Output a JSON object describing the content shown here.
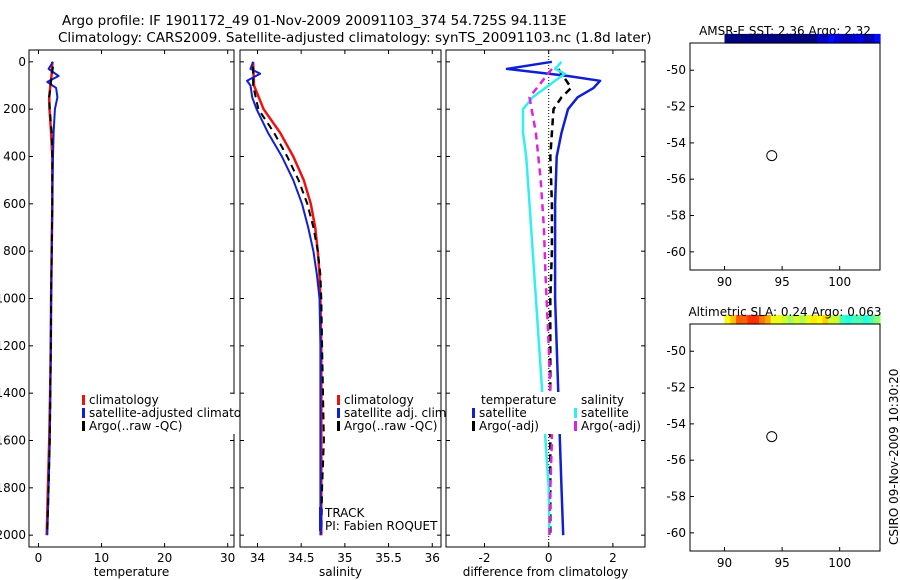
{
  "header": {
    "line1": "Argo profile: IF 1901172_49 01-Nov-2009 20091103_374 54.725S 94.113E",
    "line2": "Climatology: CARS2009. Satellite-adjusted climatology: synTS_20091103.nc (1.8d later)"
  },
  "footer": {
    "credit": "CSIRO 09-Nov-2009 10:30:20"
  },
  "colors": {
    "red": "#ee1111",
    "blue": "#1020d0",
    "black": "#000000",
    "cyan": "#33eeee",
    "magenta": "#dd22dd"
  },
  "chart_data": [
    {
      "id": "temperature",
      "type": "line",
      "xlabel": "temperature",
      "ylabel": "",
      "xlim": [
        -1.5,
        31
      ],
      "ylim": [
        2050,
        -50
      ],
      "xticks": [
        0,
        10,
        20,
        30
      ],
      "yticks": [
        0,
        200,
        400,
        600,
        800,
        1000,
        1200,
        1400,
        1600,
        1800,
        2000
      ],
      "series": [
        {
          "name": "climatology",
          "color": "#ee1111",
          "width": 2.5,
          "dash": "",
          "points": [
            [
              2.2,
              0
            ],
            [
              2.1,
              50
            ],
            [
              1.9,
              100
            ],
            [
              1.7,
              150
            ],
            [
              1.75,
              200
            ],
            [
              2.0,
              300
            ],
            [
              2.2,
              400
            ],
            [
              2.2,
              600
            ],
            [
              2.1,
              800
            ],
            [
              2.0,
              1000
            ],
            [
              1.95,
              1200
            ],
            [
              1.85,
              1400
            ],
            [
              1.7,
              1600
            ],
            [
              1.5,
              1800
            ],
            [
              1.3,
              2000
            ]
          ]
        },
        {
          "name": "satellite-adjusted climatology",
          "color": "#1020d0",
          "width": 2,
          "dash": "",
          "points": [
            [
              2.3,
              0
            ],
            [
              1.6,
              30
            ],
            [
              3.2,
              60
            ],
            [
              1.4,
              85
            ],
            [
              2.8,
              110
            ],
            [
              3.0,
              150
            ],
            [
              2.6,
              200
            ],
            [
              2.4,
              300
            ],
            [
              2.3,
              400
            ],
            [
              2.2,
              600
            ],
            [
              2.1,
              800
            ],
            [
              2.0,
              1000
            ],
            [
              1.95,
              1200
            ],
            [
              1.9,
              1400
            ],
            [
              1.8,
              1600
            ],
            [
              1.6,
              1800
            ],
            [
              1.4,
              2000
            ]
          ]
        },
        {
          "name": "Argo(..raw -QC)",
          "color": "#000000",
          "width": 2,
          "dash": "7,5",
          "points": [
            [
              2.3,
              20
            ],
            [
              2.0,
              80
            ],
            [
              1.7,
              150
            ],
            [
              1.8,
              200
            ],
            [
              2.1,
              300
            ],
            [
              2.2,
              400
            ],
            [
              2.2,
              600
            ],
            [
              2.1,
              800
            ],
            [
              2.0,
              1000
            ],
            [
              1.95,
              1200
            ],
            [
              1.9,
              1400
            ],
            [
              1.8,
              1600
            ],
            [
              1.6,
              1800
            ],
            [
              1.4,
              1990
            ]
          ]
        }
      ],
      "legend": {
        "position": "lower-center",
        "entries": [
          {
            "label": "climatology",
            "color": "#ee1111"
          },
          {
            "label": "satellite-adjusted climatolog",
            "color": "#1020d0"
          },
          {
            "label": "Argo(..raw -QC)",
            "color": "#000000"
          }
        ]
      }
    },
    {
      "id": "salinity",
      "type": "line",
      "xlabel": "salinity",
      "ylabel": "",
      "xlim": [
        33.8,
        36.1
      ],
      "ylim": [
        2050,
        -50
      ],
      "xticks": [
        34,
        34.5,
        35,
        35.5,
        36
      ],
      "series": [
        {
          "name": "climatology",
          "color": "#ee1111",
          "width": 2.5,
          "dash": "",
          "points": [
            [
              33.95,
              0
            ],
            [
              33.96,
              100
            ],
            [
              34.07,
              200
            ],
            [
              34.26,
              300
            ],
            [
              34.41,
              400
            ],
            [
              34.53,
              500
            ],
            [
              34.61,
              600
            ],
            [
              34.66,
              700
            ],
            [
              34.69,
              800
            ],
            [
              34.71,
              900
            ],
            [
              34.72,
              1000
            ],
            [
              34.73,
              1200
            ],
            [
              34.73,
              1400
            ],
            [
              34.73,
              1600
            ],
            [
              34.73,
              1800
            ],
            [
              34.73,
              2000
            ]
          ]
        },
        {
          "name": "satellite adj. clim.",
          "color": "#1020d0",
          "width": 2,
          "dash": "",
          "points": [
            [
              33.95,
              0
            ],
            [
              33.92,
              30
            ],
            [
              34.03,
              50
            ],
            [
              33.88,
              80
            ],
            [
              33.92,
              100
            ],
            [
              33.94,
              150
            ],
            [
              33.99,
              200
            ],
            [
              34.12,
              300
            ],
            [
              34.28,
              400
            ],
            [
              34.41,
              500
            ],
            [
              34.51,
              600
            ],
            [
              34.58,
              700
            ],
            [
              34.64,
              800
            ],
            [
              34.68,
              900
            ],
            [
              34.71,
              1000
            ],
            [
              34.72,
              1200
            ],
            [
              34.72,
              1400
            ],
            [
              34.72,
              1600
            ],
            [
              34.72,
              1800
            ],
            [
              34.72,
              2000
            ]
          ]
        },
        {
          "name": "Argo(..raw -QC)",
          "color": "#000000",
          "width": 2,
          "dash": "7,5",
          "points": [
            [
              33.95,
              20
            ],
            [
              33.95,
              100
            ],
            [
              34.01,
              200
            ],
            [
              34.19,
              300
            ],
            [
              34.34,
              400
            ],
            [
              34.47,
              500
            ],
            [
              34.57,
              600
            ],
            [
              34.64,
              700
            ],
            [
              34.69,
              800
            ],
            [
              34.72,
              900
            ],
            [
              34.73,
              1000
            ],
            [
              34.74,
              1200
            ],
            [
              34.75,
              1400
            ],
            [
              34.76,
              1600
            ],
            [
              34.74,
              1800
            ],
            [
              34.73,
              1990
            ]
          ]
        }
      ],
      "legend": {
        "position": "lower-right",
        "entries": [
          {
            "label": "climatology",
            "color": "#ee1111"
          },
          {
            "label": "satellite adj. clim.",
            "color": "#1020d0"
          },
          {
            "label": "Argo(..raw -QC)",
            "color": "#000000"
          }
        ]
      },
      "annotations": [
        "TRACK",
        "PI: Fabien ROQUET"
      ]
    },
    {
      "id": "difference",
      "type": "line",
      "xlabel": "difference from climatology",
      "ylabel": "",
      "xlim": [
        -3.2,
        3.0
      ],
      "ylim": [
        2050,
        -50
      ],
      "xticks": [
        -2,
        0,
        2
      ],
      "series": [
        {
          "name": "temperature satellite",
          "color": "#1020d0",
          "width": 2.5,
          "dash": "",
          "points": [
            [
              0.1,
              0
            ],
            [
              -1.3,
              30
            ],
            [
              0.6,
              60
            ],
            [
              1.6,
              80
            ],
            [
              1.4,
              110
            ],
            [
              0.9,
              150
            ],
            [
              0.6,
              200
            ],
            [
              0.4,
              300
            ],
            [
              0.25,
              400
            ],
            [
              0.2,
              600
            ],
            [
              0.2,
              800
            ],
            [
              0.2,
              1000
            ],
            [
              0.25,
              1200
            ],
            [
              0.3,
              1400
            ],
            [
              0.35,
              1600
            ],
            [
              0.4,
              1800
            ],
            [
              0.45,
              2000
            ]
          ]
        },
        {
          "name": "temperature Argo(-adj)",
          "color": "#000000",
          "width": 2.5,
          "dash": "7,5",
          "points": [
            [
              0.3,
              30
            ],
            [
              0.55,
              80
            ],
            [
              0.7,
              110
            ],
            [
              0.4,
              150
            ],
            [
              0.15,
              200
            ],
            [
              0.1,
              300
            ],
            [
              0.05,
              400
            ],
            [
              0.1,
              600
            ],
            [
              0.1,
              800
            ],
            [
              0.05,
              1000
            ],
            [
              0.05,
              1200
            ],
            [
              0.05,
              1400
            ],
            [
              0.05,
              1600
            ],
            [
              0.05,
              1800
            ],
            [
              0.05,
              1990
            ]
          ]
        },
        {
          "name": "salinity satellite",
          "color": "#33eeee",
          "width": 2.5,
          "dash": "",
          "points": [
            [
              0.4,
              0
            ],
            [
              0.2,
              30
            ],
            [
              0.5,
              50
            ],
            [
              0.2,
              80
            ],
            [
              -0.5,
              150
            ],
            [
              -0.8,
              200
            ],
            [
              -0.8,
              300
            ],
            [
              -0.7,
              400
            ],
            [
              -0.6,
              600
            ],
            [
              -0.5,
              800
            ],
            [
              -0.4,
              1000
            ],
            [
              -0.3,
              1200
            ],
            [
              -0.2,
              1400
            ],
            [
              -0.1,
              1600
            ],
            [
              0,
              1800
            ],
            [
              0.02,
              2000
            ]
          ]
        },
        {
          "name": "salinity Argo(-adj)",
          "color": "#dd22dd",
          "width": 2.5,
          "dash": "7,5",
          "points": [
            [
              0.1,
              30
            ],
            [
              -0.6,
              150
            ],
            [
              -0.4,
              300
            ],
            [
              -0.25,
              500
            ],
            [
              -0.15,
              700
            ],
            [
              -0.1,
              900
            ],
            [
              0,
              1200
            ],
            [
              0.05,
              1400
            ],
            [
              0.1,
              1600
            ],
            [
              0.05,
              1800
            ],
            [
              0.02,
              2000
            ]
          ]
        }
      ],
      "legend": {
        "position": "lower-center",
        "temperature_title": "temperature",
        "salinity_title": "salinity",
        "entries": [
          {
            "label": "satellite",
            "color": "#1020d0"
          },
          {
            "label": "Argo(-adj)",
            "color": "#000000"
          },
          {
            "label": "satellite",
            "color": "#33eeee"
          },
          {
            "label": "Argo(-adj)",
            "color": "#dd22dd"
          }
        ]
      }
    },
    {
      "id": "sst_map",
      "type": "heatmap",
      "title": "AMSR-E SST: 2.36 Argo: 2.32",
      "xlim": [
        87,
        103.5
      ],
      "ylim": [
        -61,
        -48.5
      ],
      "xticks": [
        90,
        95,
        100
      ],
      "yticks": [
        -50,
        -52,
        -54,
        -56,
        -58,
        -60
      ],
      "marker": [
        94.1,
        -54.7
      ]
    },
    {
      "id": "sla_map",
      "type": "heatmap",
      "title": "Altimetric SLA: 0.24 Argo: 0.063",
      "xlim": [
        87,
        103.5
      ],
      "ylim": [
        -61,
        -48.5
      ],
      "xticks": [
        90,
        95,
        100
      ],
      "yticks": [
        -50,
        -52,
        -54,
        -56,
        -58,
        -60
      ],
      "marker": [
        94.1,
        -54.7
      ]
    }
  ]
}
